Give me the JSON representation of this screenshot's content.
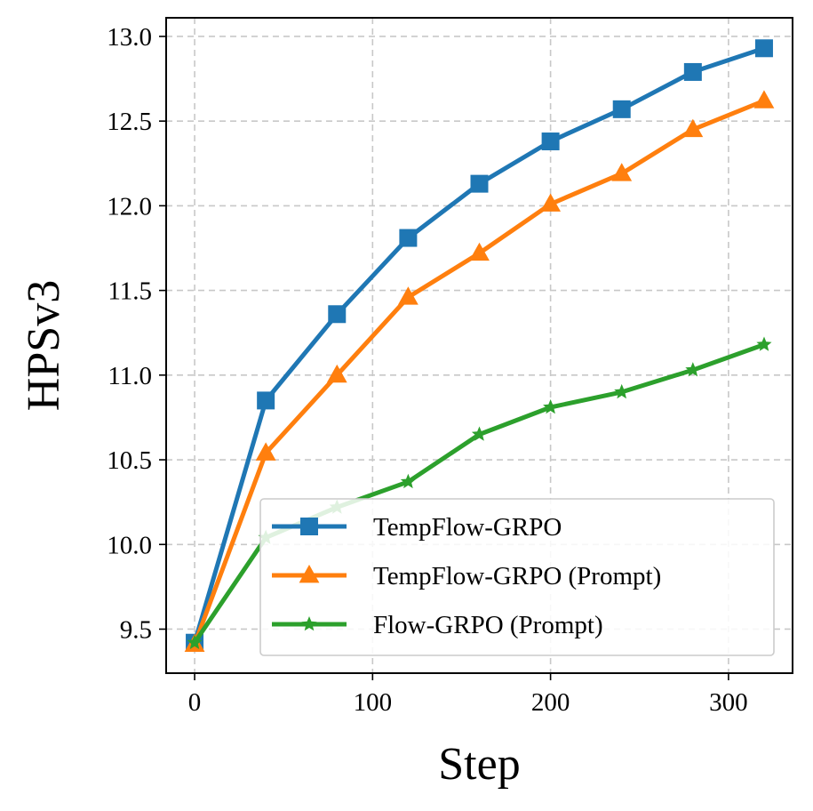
{
  "chart_data": {
    "type": "line",
    "title": "",
    "xlabel": "Step",
    "ylabel": "HPSv3",
    "xlim": [
      -16,
      336
    ],
    "ylim": [
      9.24,
      13.11
    ],
    "xticks": [
      0,
      100,
      200,
      300
    ],
    "xtick_labels": [
      "0",
      "100",
      "200",
      "300"
    ],
    "yticks": [
      9.5,
      10.0,
      10.5,
      11.0,
      11.5,
      12.0,
      12.5,
      13.0
    ],
    "ytick_labels": [
      "9.5",
      "10.0",
      "10.5",
      "11.0",
      "11.5",
      "12.0",
      "12.5",
      "13.0"
    ],
    "grid": true,
    "legend_location": "lower-right",
    "x": [
      0,
      40,
      80,
      120,
      160,
      200,
      240,
      280,
      320
    ],
    "series": [
      {
        "name": "TempFlow-GRPO",
        "color": "#1f77b4",
        "marker": "square",
        "values": [
          9.42,
          10.85,
          11.36,
          11.81,
          12.13,
          12.38,
          12.57,
          12.79,
          12.93
        ]
      },
      {
        "name": "TempFlow-GRPO (Prompt)",
        "color": "#ff7f0e",
        "marker": "triangle",
        "values": [
          9.41,
          10.54,
          11.0,
          11.46,
          11.72,
          12.01,
          12.19,
          12.45,
          12.62
        ]
      },
      {
        "name": "Flow-GRPO (Prompt)",
        "color": "#2ca02c",
        "marker": "star",
        "values": [
          9.42,
          10.04,
          10.22,
          10.37,
          10.65,
          10.81,
          10.9,
          11.03,
          11.18
        ]
      }
    ]
  }
}
